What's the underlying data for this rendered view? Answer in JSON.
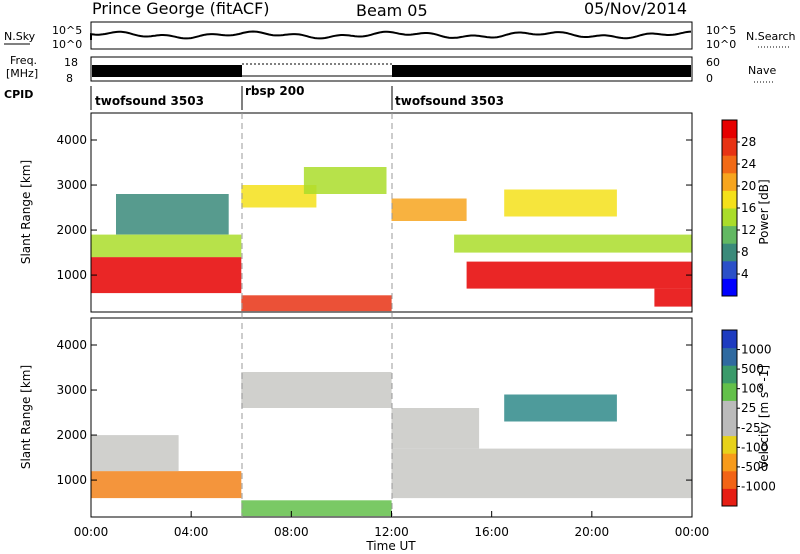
{
  "header": {
    "station": "Prince George (fitACF)",
    "beam": "Beam 05",
    "date": "05/Nov/2014"
  },
  "panels": {
    "nsky": {
      "label": "N.Sky",
      "ticks": [
        "10^5",
        "10^0"
      ],
      "right_label": "N.Search",
      "right_ticks": [
        "10^5",
        "10^0"
      ]
    },
    "freq": {
      "label_line1": "Freq.",
      "label_line2": "[MHz]",
      "ticks": [
        "18",
        "8"
      ],
      "right_label": "Nave",
      "right_ticks": [
        "60",
        "0"
      ]
    },
    "cpid": {
      "label": "CPID",
      "segments": [
        {
          "label": "twofsound 3503",
          "start": "00:00",
          "end": "06:00"
        },
        {
          "label": "rbsp 200",
          "start": "06:00",
          "end": "12:00"
        },
        {
          "label": "twofsound 3503",
          "start": "12:00",
          "end": "24:00"
        }
      ]
    }
  },
  "x_axis": {
    "label": "Time UT",
    "ticks": [
      "00:00",
      "04:00",
      "08:00",
      "12:00",
      "16:00",
      "20:00",
      "00:00"
    ]
  },
  "y_axis": {
    "label": "Slant Range [km]",
    "ticks": [
      "4000",
      "3000",
      "2000",
      "1000"
    ]
  },
  "power_colorbar": {
    "label": "Power [dB]",
    "ticks": [
      "28",
      "24",
      "20",
      "16",
      "12",
      "8",
      "4"
    ],
    "colors": [
      "#0000ff",
      "#2b50c8",
      "#3a8a7a",
      "#62b862",
      "#aadd2a",
      "#f4e01a",
      "#f7a51e",
      "#f26a16",
      "#e73314",
      "#e60000"
    ]
  },
  "velocity_colorbar": {
    "label": "Velocity [m s^-1]",
    "ticks": [
      "1000",
      "500",
      "100",
      "25",
      "-25",
      "-100",
      "-500",
      "-1000"
    ],
    "colors": [
      "#1e3cc0",
      "#2f6aa0",
      "#3a9a6a",
      "#63c04a",
      "#bbbbbb",
      "#bbbbbb",
      "#e7d21a",
      "#f79b1b",
      "#f26416",
      "#e61e14"
    ]
  },
  "chart_data": {
    "type": "heatmap",
    "title": "Prince George (fitACF) Beam 05 05/Nov/2014",
    "xlabel": "Time UT",
    "ylabel": "Slant Range [km]",
    "xlim": [
      "00:00",
      "24:00"
    ],
    "ylim": [
      180,
      4600
    ],
    "mode_changes_ut": [
      "06:00",
      "12:00"
    ],
    "power_dB": [
      {
        "t0": 0.0,
        "t1": 6.0,
        "r0": 600,
        "r1": 1400,
        "value": 28
      },
      {
        "t0": 0.0,
        "t1": 6.0,
        "r0": 1400,
        "r1": 1900,
        "value": 12
      },
      {
        "t0": 1.0,
        "t1": 5.5,
        "r0": 1900,
        "r1": 2800,
        "value": 8
      },
      {
        "t0": 6.0,
        "t1": 12.0,
        "r0": 200,
        "r1": 550,
        "value": 24
      },
      {
        "t0": 6.0,
        "t1": 9.0,
        "r0": 2500,
        "r1": 3000,
        "value": 16
      },
      {
        "t0": 8.5,
        "t1": 11.8,
        "r0": 2800,
        "r1": 3400,
        "value": 12
      },
      {
        "t0": 12.0,
        "t1": 15.0,
        "r0": 2200,
        "r1": 2700,
        "value": 20
      },
      {
        "t0": 14.5,
        "t1": 24.0,
        "r0": 1500,
        "r1": 1900,
        "value": 12
      },
      {
        "t0": 15.0,
        "t1": 24.0,
        "r0": 700,
        "r1": 1300,
        "value": 28
      },
      {
        "t0": 16.5,
        "t1": 21.0,
        "r0": 2300,
        "r1": 2900,
        "value": 16
      },
      {
        "t0": 22.5,
        "t1": 24.0,
        "r0": 300,
        "r1": 700,
        "value": 28
      }
    ],
    "velocity_m_s": [
      {
        "t0": 0.0,
        "t1": 6.0,
        "r0": 600,
        "r1": 1200,
        "value": -500
      },
      {
        "t0": 0.0,
        "t1": 3.5,
        "r0": 1200,
        "r1": 2000,
        "value": 25
      },
      {
        "t0": 6.0,
        "t1": 12.0,
        "r0": 200,
        "r1": 550,
        "value": 100
      },
      {
        "t0": 6.0,
        "t1": 12.0,
        "r0": 2600,
        "r1": 3400,
        "value": 25
      },
      {
        "t0": 12.0,
        "t1": 24.0,
        "r0": 600,
        "r1": 1700,
        "value": 25
      },
      {
        "t0": 12.0,
        "t1": 15.5,
        "r0": 1700,
        "r1": 2600,
        "value": 25
      },
      {
        "t0": 16.5,
        "t1": 21.0,
        "r0": 2300,
        "r1": 2900,
        "value": 500
      }
    ]
  }
}
